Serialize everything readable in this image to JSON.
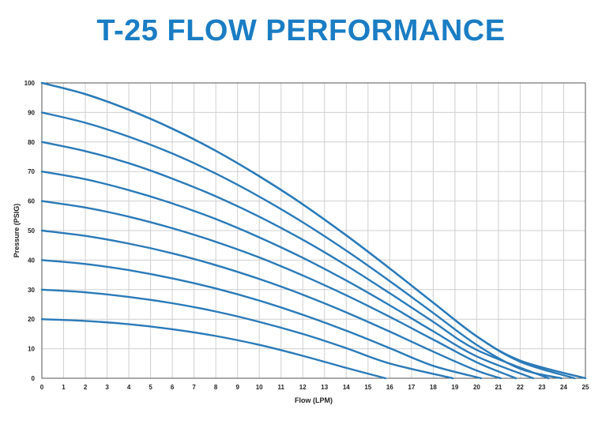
{
  "page": {
    "title": "T-25 FLOW PERFORMANCE",
    "title_color": "#1a7dc4"
  },
  "chart_data": {
    "type": "line",
    "title": "T-25 FLOW PERFORMANCE",
    "xlabel": "Flow (LPM)",
    "ylabel": "Pressure (PSIG)",
    "xlim": [
      0,
      25
    ],
    "ylim": [
      0,
      100
    ],
    "x_ticks": [
      0,
      1,
      2,
      3,
      4,
      5,
      6,
      7,
      8,
      9,
      10,
      11,
      12,
      13,
      14,
      15,
      16,
      17,
      18,
      19,
      20,
      21,
      22,
      23,
      24,
      25
    ],
    "y_ticks": [
      0,
      10,
      20,
      30,
      40,
      50,
      60,
      70,
      80,
      90,
      100
    ],
    "grid": true,
    "line_color": "#2a7ab8",
    "series": [
      {
        "values": [
          [
            0,
            20
          ],
          [
            2,
            19.4
          ],
          [
            4,
            18.3
          ],
          [
            6,
            16.6
          ],
          [
            8,
            14.3
          ],
          [
            10,
            11.3
          ],
          [
            12,
            7.6
          ],
          [
            14,
            3.5
          ],
          [
            15.8,
            0
          ]
        ]
      },
      {
        "values": [
          [
            0,
            30
          ],
          [
            2,
            29.1
          ],
          [
            4,
            27.5
          ],
          [
            6,
            25.4
          ],
          [
            8,
            22.6
          ],
          [
            10,
            19.1
          ],
          [
            12,
            15.0
          ],
          [
            14,
            10.2
          ],
          [
            16,
            5.0
          ],
          [
            18.9,
            0
          ]
        ]
      },
      {
        "values": [
          [
            0,
            40
          ],
          [
            2,
            38.7
          ],
          [
            4,
            36.6
          ],
          [
            6,
            33.8
          ],
          [
            8,
            30.4
          ],
          [
            10,
            26.3
          ],
          [
            12,
            21.5
          ],
          [
            14,
            16.1
          ],
          [
            16,
            10.2
          ],
          [
            18,
            4.2
          ],
          [
            20.2,
            0
          ]
        ]
      },
      {
        "values": [
          [
            0,
            50
          ],
          [
            2,
            48.2
          ],
          [
            4,
            45.6
          ],
          [
            6,
            42.3
          ],
          [
            8,
            38.3
          ],
          [
            10,
            33.6
          ],
          [
            12,
            28.3
          ],
          [
            14,
            22.3
          ],
          [
            16,
            15.8
          ],
          [
            18,
            9.0
          ],
          [
            20,
            2.6
          ],
          [
            21.1,
            0
          ]
        ]
      },
      {
        "values": [
          [
            0,
            60
          ],
          [
            2,
            57.8
          ],
          [
            4,
            54.7
          ],
          [
            6,
            50.8
          ],
          [
            8,
            46.2
          ],
          [
            10,
            40.9
          ],
          [
            12,
            34.8
          ],
          [
            14,
            28.1
          ],
          [
            16,
            20.8
          ],
          [
            18,
            13.1
          ],
          [
            20,
            5.4
          ],
          [
            21.8,
            0
          ]
        ]
      },
      {
        "values": [
          [
            0,
            70
          ],
          [
            2,
            67.4
          ],
          [
            4,
            63.7
          ],
          [
            6,
            59.2
          ],
          [
            8,
            53.9
          ],
          [
            10,
            47.7
          ],
          [
            12,
            40.8
          ],
          [
            14,
            33.1
          ],
          [
            16,
            24.7
          ],
          [
            18,
            15.9
          ],
          [
            20,
            7.4
          ],
          [
            22.6,
            0
          ]
        ]
      },
      {
        "values": [
          [
            0,
            80
          ],
          [
            2,
            76.9
          ],
          [
            4,
            72.8
          ],
          [
            6,
            67.6
          ],
          [
            8,
            61.6
          ],
          [
            10,
            54.7
          ],
          [
            12,
            46.9
          ],
          [
            14,
            38.2
          ],
          [
            16,
            28.8
          ],
          [
            18,
            19.1
          ],
          [
            20,
            9.6
          ],
          [
            23.3,
            0
          ]
        ]
      },
      {
        "values": [
          [
            0,
            90
          ],
          [
            2,
            86.5
          ],
          [
            4,
            81.8
          ],
          [
            6,
            76.1
          ],
          [
            8,
            69.3
          ],
          [
            10,
            61.5
          ],
          [
            12,
            52.8
          ],
          [
            14,
            43.2
          ],
          [
            16,
            32.9
          ],
          [
            18,
            22.1
          ],
          [
            20,
            11.3
          ],
          [
            22,
            3.2
          ],
          [
            23.9,
            0
          ]
        ]
      },
      {
        "values": [
          [
            0,
            100
          ],
          [
            2,
            96.2
          ],
          [
            4,
            90.9
          ],
          [
            6,
            84.5
          ],
          [
            8,
            77.0
          ],
          [
            10,
            68.4
          ],
          [
            12,
            58.9
          ],
          [
            14,
            48.4
          ],
          [
            16,
            37.2
          ],
          [
            18,
            25.6
          ],
          [
            20,
            14.2
          ],
          [
            22,
            5.6
          ],
          [
            24.5,
            0
          ]
        ]
      },
      {
        "values": [
          [
            0,
            100
          ],
          [
            2,
            96.2
          ],
          [
            4,
            90.9
          ],
          [
            6,
            84.5
          ],
          [
            8,
            77.0
          ],
          [
            10,
            68.4
          ],
          [
            12,
            58.9
          ],
          [
            14,
            48.4
          ],
          [
            16,
            37.2
          ],
          [
            18,
            25.6
          ],
          [
            20,
            14.2
          ],
          [
            22,
            6.0
          ],
          [
            25,
            0
          ]
        ]
      }
    ]
  }
}
